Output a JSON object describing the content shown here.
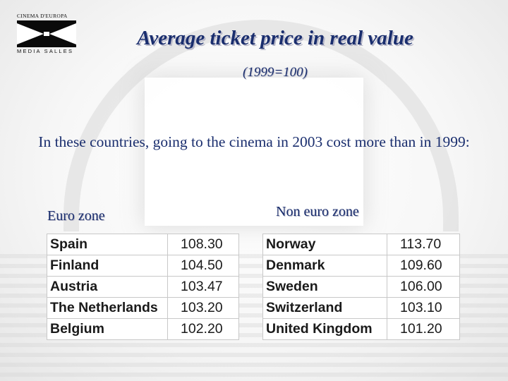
{
  "logo": {
    "top_text": "CINEMA D'EUROPA",
    "bottom_text": "MEDIA SALLES"
  },
  "title": "Average ticket price in real value",
  "subtitle": "(1999=100)",
  "intro": "In these countries, going to the cinema in 2003 cost more than in 1999:",
  "euro_zone": {
    "label": "Euro zone",
    "rows": [
      {
        "country": "Spain",
        "value": "108.30"
      },
      {
        "country": "Finland",
        "value": "104.50"
      },
      {
        "country": "Austria",
        "value": "103.47"
      },
      {
        "country": "The Netherlands",
        "value": "103.20"
      },
      {
        "country": "Belgium",
        "value": "102.20"
      }
    ]
  },
  "non_euro_zone": {
    "label": "Non euro zone",
    "rows": [
      {
        "country": "Norway",
        "value": "113.70"
      },
      {
        "country": "Denmark",
        "value": "109.60"
      },
      {
        "country": "Sweden",
        "value": "106.00"
      },
      {
        "country": "Switzerland",
        "value": "103.10"
      },
      {
        "country": "United Kingdom",
        "value": "101.20"
      }
    ]
  },
  "colors": {
    "title_blue": "#1a2e6e",
    "table_border": "#c8c8c8"
  }
}
